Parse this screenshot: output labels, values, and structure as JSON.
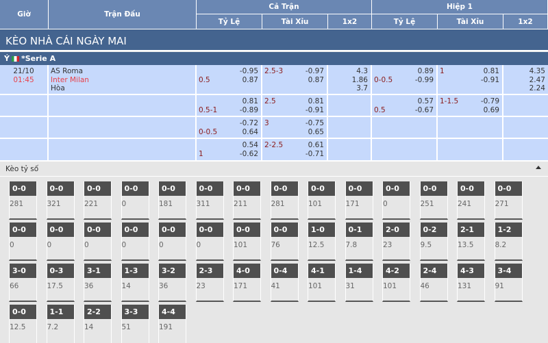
{
  "header": {
    "time": "Giờ",
    "match": "Trận Đấu",
    "full": "Cả Trận",
    "half": "Hiệp 1",
    "handicap": "Tỷ Lệ",
    "overunder": "Tài Xỉu",
    "x12": "1x2"
  },
  "title": "KÈO NHÀ CÁI NGÀY MAI",
  "league": {
    "country": "Ý",
    "name": "*Serie A",
    "flag": "italy-flag-icon"
  },
  "match": {
    "date": "21/10",
    "time": "01:45",
    "home": "AS Roma",
    "away": "Inter Milan",
    "draw": "Hòa"
  },
  "rows": [
    {
      "ft_hdp": "0.5",
      "ft_hdp_o": [
        "-0.95",
        "0.87"
      ],
      "ft_ou": "2.5-3",
      "ft_ou_o": [
        "-0.97",
        "0.87"
      ],
      "ft_1x2": [
        "4.3",
        "1.86",
        "3.7"
      ],
      "h1_hdp": "0-0.5",
      "h1_hdp_o": [
        "0.89",
        "-0.99"
      ],
      "h1_ou": "1",
      "h1_ou_o": [
        "0.81",
        "-0.91"
      ],
      "h1_1x2": [
        "4.35",
        "2.47",
        "2.24"
      ]
    },
    {
      "ft_hdp": "0.5-1",
      "ft_hdp_o": [
        "0.81",
        "-0.89"
      ],
      "ft_ou": "2.5",
      "ft_ou_o": [
        "0.81",
        "-0.91"
      ],
      "h1_hdp": "0.5",
      "h1_hdp_o": [
        "0.57",
        "-0.67"
      ],
      "h1_ou": "1-1.5",
      "h1_ou_o": [
        "-0.79",
        "0.69"
      ]
    },
    {
      "ft_hdp": "0-0.5",
      "ft_hdp_o": [
        "-0.72",
        "0.64"
      ],
      "ft_ou": "3",
      "ft_ou_o": [
        "-0.75",
        "0.65"
      ]
    },
    {
      "ft_hdp": "1",
      "ft_hdp_o": [
        "0.54",
        "-0.62"
      ],
      "ft_ou": "2-2.5",
      "ft_ou_o": [
        "0.61",
        "-0.71"
      ]
    }
  ],
  "scores": {
    "title": "Kèo tỷ số",
    "items": [
      [
        "0-0",
        "281"
      ],
      [
        "0-0",
        "321"
      ],
      [
        "0-0",
        "221"
      ],
      [
        "0-0",
        "0"
      ],
      [
        "0-0",
        "181"
      ],
      [
        "0-0",
        "311"
      ],
      [
        "0-0",
        "211"
      ],
      [
        "0-0",
        "281"
      ],
      [
        "0-0",
        "101"
      ],
      [
        "0-0",
        "171"
      ],
      [
        "0-0",
        "0"
      ],
      [
        "0-0",
        "251"
      ],
      [
        "0-0",
        "241"
      ],
      [
        "0-0",
        "271"
      ],
      [
        "0-0",
        "0"
      ],
      [
        "0-0",
        "0"
      ],
      [
        "0-0",
        "0"
      ],
      [
        "0-0",
        "0"
      ],
      [
        "0-0",
        "0"
      ],
      [
        "0-0",
        "0"
      ],
      [
        "0-0",
        "101"
      ],
      [
        "0-0",
        "76"
      ],
      [
        "1-0",
        "12.5"
      ],
      [
        "0-1",
        "7.8"
      ],
      [
        "2-0",
        "23"
      ],
      [
        "0-2",
        "9.5"
      ],
      [
        "2-1",
        "13.5"
      ],
      [
        "1-2",
        "8.2"
      ],
      [
        "3-0",
        "66"
      ],
      [
        "0-3",
        "17.5"
      ],
      [
        "3-1",
        "36"
      ],
      [
        "1-3",
        "14"
      ],
      [
        "3-2",
        "36"
      ],
      [
        "2-3",
        "23"
      ],
      [
        "4-0",
        "171"
      ],
      [
        "0-4",
        "41"
      ],
      [
        "4-1",
        "101"
      ],
      [
        "1-4",
        "31"
      ],
      [
        "4-2",
        "101"
      ],
      [
        "2-4",
        "46"
      ],
      [
        "4-3",
        "131"
      ],
      [
        "3-4",
        "91"
      ],
      [
        "0-0",
        "12.5"
      ],
      [
        "1-1",
        "7.2"
      ],
      [
        "2-2",
        "14"
      ],
      [
        "3-3",
        "51"
      ],
      [
        "4-4",
        "191"
      ]
    ]
  }
}
